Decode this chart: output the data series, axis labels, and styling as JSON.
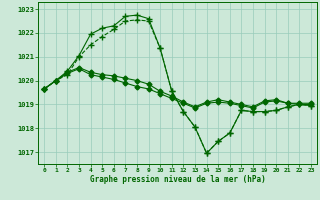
{
  "title": "Graphe pression niveau de la mer (hPa)",
  "background_color": "#cce8d8",
  "grid_color": "#99ccbb",
  "line_color": "#006600",
  "ylim": [
    1016.5,
    1023.3
  ],
  "xlim": [
    -0.5,
    23.5
  ],
  "yticks": [
    1017,
    1018,
    1019,
    1020,
    1021,
    1022,
    1023
  ],
  "xticks": [
    0,
    1,
    2,
    3,
    4,
    5,
    6,
    7,
    8,
    9,
    10,
    11,
    12,
    13,
    14,
    15,
    16,
    17,
    18,
    19,
    20,
    21,
    22,
    23
  ],
  "series": [
    {
      "x": [
        0,
        1,
        2,
        3,
        4,
        5,
        6,
        7,
        8,
        9,
        10,
        11,
        12,
        13,
        14,
        15,
        16,
        17,
        18,
        19,
        20,
        21,
        22,
        23
      ],
      "y": [
        1019.65,
        1020.0,
        1020.3,
        1020.5,
        1020.25,
        1020.15,
        1020.05,
        1019.9,
        1019.75,
        1019.65,
        1019.45,
        1019.25,
        1019.05,
        1018.85,
        1019.05,
        1019.1,
        1019.05,
        1018.95,
        1018.85,
        1019.1,
        1019.15,
        1019.05,
        1019.0,
        1019.0
      ],
      "marker": "D",
      "markersize": 2.5,
      "linewidth": 0.8,
      "linestyle": "-"
    },
    {
      "x": [
        0,
        1,
        2,
        3,
        4,
        5,
        6,
        7,
        8,
        9,
        10,
        11,
        12,
        13,
        14,
        15,
        16,
        17,
        18,
        19,
        20,
        21,
        22,
        23
      ],
      "y": [
        1019.65,
        1020.0,
        1020.35,
        1020.55,
        1020.35,
        1020.25,
        1020.2,
        1020.1,
        1020.0,
        1019.85,
        1019.55,
        1019.35,
        1019.1,
        1018.9,
        1019.1,
        1019.2,
        1019.1,
        1019.0,
        1018.9,
        1019.15,
        1019.2,
        1019.05,
        1019.05,
        1019.05
      ],
      "marker": "D",
      "markersize": 2.5,
      "linewidth": 0.8,
      "linestyle": "-"
    },
    {
      "x": [
        0,
        1,
        2,
        3,
        4,
        5,
        6,
        7,
        8,
        9,
        10,
        11,
        12,
        13,
        14,
        15,
        16,
        17,
        18,
        19,
        20,
        21,
        22,
        23
      ],
      "y": [
        1019.65,
        1020.0,
        1020.25,
        1021.0,
        1021.5,
        1021.85,
        1022.15,
        1022.5,
        1022.55,
        1022.5,
        1021.35,
        1019.55,
        1018.7,
        1018.05,
        1016.95,
        1017.45,
        1017.8,
        1018.75,
        1018.7,
        1018.7,
        1018.75,
        1018.9,
        1019.0,
        1018.95
      ],
      "marker": "+",
      "markersize": 4,
      "linewidth": 0.8,
      "linestyle": "--"
    },
    {
      "x": [
        0,
        1,
        2,
        3,
        4,
        5,
        6,
        7,
        8,
        9,
        10,
        11,
        12,
        13,
        14,
        15,
        16,
        17,
        18,
        19,
        20,
        21,
        22,
        23
      ],
      "y": [
        1019.65,
        1020.0,
        1020.4,
        1021.05,
        1021.95,
        1022.2,
        1022.3,
        1022.7,
        1022.75,
        1022.6,
        1021.35,
        1019.55,
        1018.7,
        1018.05,
        1016.95,
        1017.45,
        1017.8,
        1018.75,
        1018.7,
        1018.7,
        1018.75,
        1018.9,
        1019.0,
        1018.95
      ],
      "marker": "+",
      "markersize": 4,
      "linewidth": 0.8,
      "linestyle": "-"
    }
  ]
}
